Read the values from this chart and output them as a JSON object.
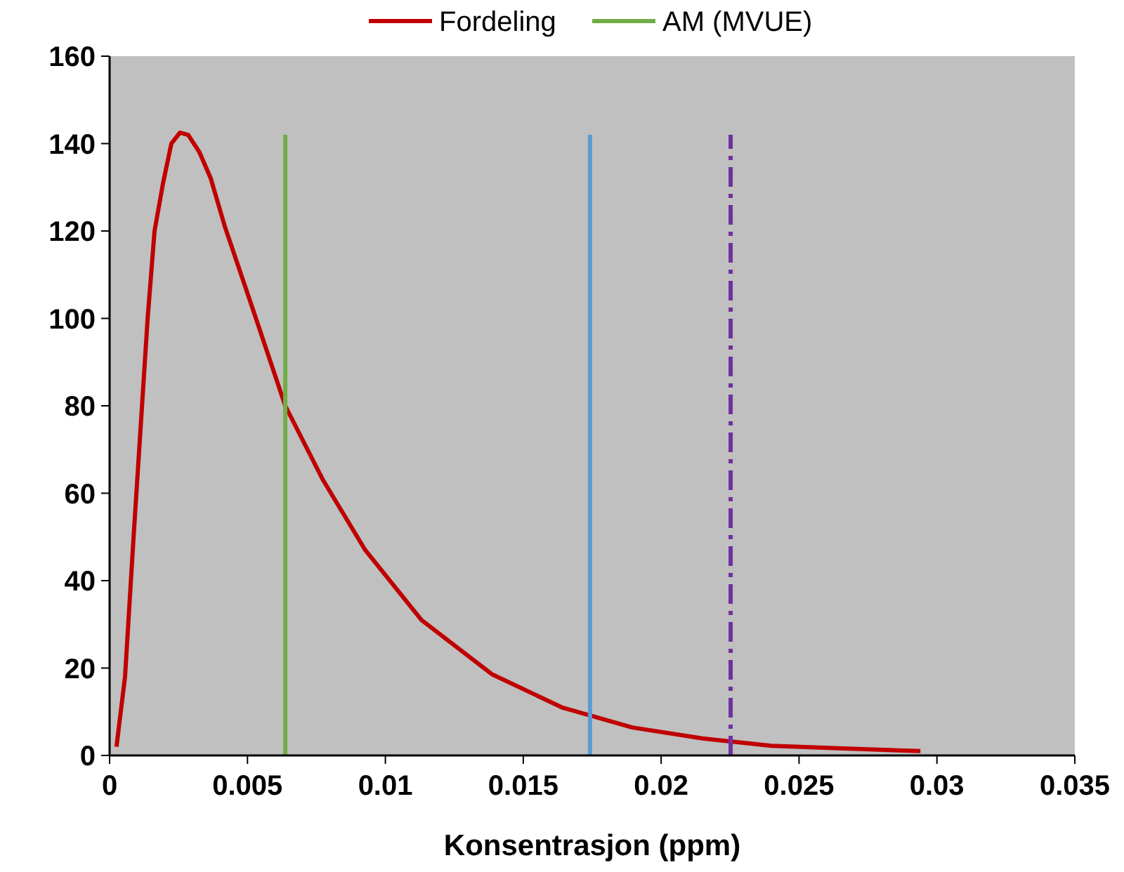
{
  "chart_data": {
    "type": "line",
    "xlabel": "Konsentrasjon (ppm)",
    "xlim": [
      0,
      0.035
    ],
    "xticks": [
      0,
      0.005,
      0.01,
      0.015,
      0.02,
      0.025,
      0.03,
      0.035
    ],
    "ylim": [
      0,
      160
    ],
    "yticks": [
      0,
      20,
      40,
      60,
      80,
      100,
      120,
      140,
      160
    ],
    "legend": "top",
    "grid": false,
    "marker": "none",
    "series": [
      {
        "name": "Fordeling",
        "color": "#c00000",
        "x": [
          0.00025,
          0.00056,
          0.00087,
          0.00138,
          0.00163,
          0.00194,
          0.00224,
          0.00255,
          0.00285,
          0.00326,
          0.00367,
          0.00418,
          0.0052,
          0.00637,
          0.00774,
          0.00927,
          0.01131,
          0.01386,
          0.0164,
          0.01895,
          0.0215,
          0.024,
          0.0266,
          0.0294
        ],
        "values": [
          2,
          18,
          50,
          100,
          120,
          131,
          140,
          142.5,
          142,
          138,
          132,
          121,
          102,
          80,
          63,
          47,
          31,
          18.6,
          11,
          6.4,
          3.9,
          2.2,
          1.6,
          1.0
        ]
      },
      {
        "name": "AM (MVUE)",
        "color": "#70ad47",
        "x": [
          0.00637,
          0.00637
        ],
        "values": [
          0,
          142
        ]
      },
      {
        "color": "#5b9bd5",
        "x": [
          0.01742,
          0.01742
        ],
        "values": [
          0,
          142
        ]
      },
      {
        "color": "#7030a0",
        "x": [
          0.02252,
          0.02252
        ],
        "values": [
          0,
          142
        ],
        "line_style": "dashed"
      }
    ]
  }
}
